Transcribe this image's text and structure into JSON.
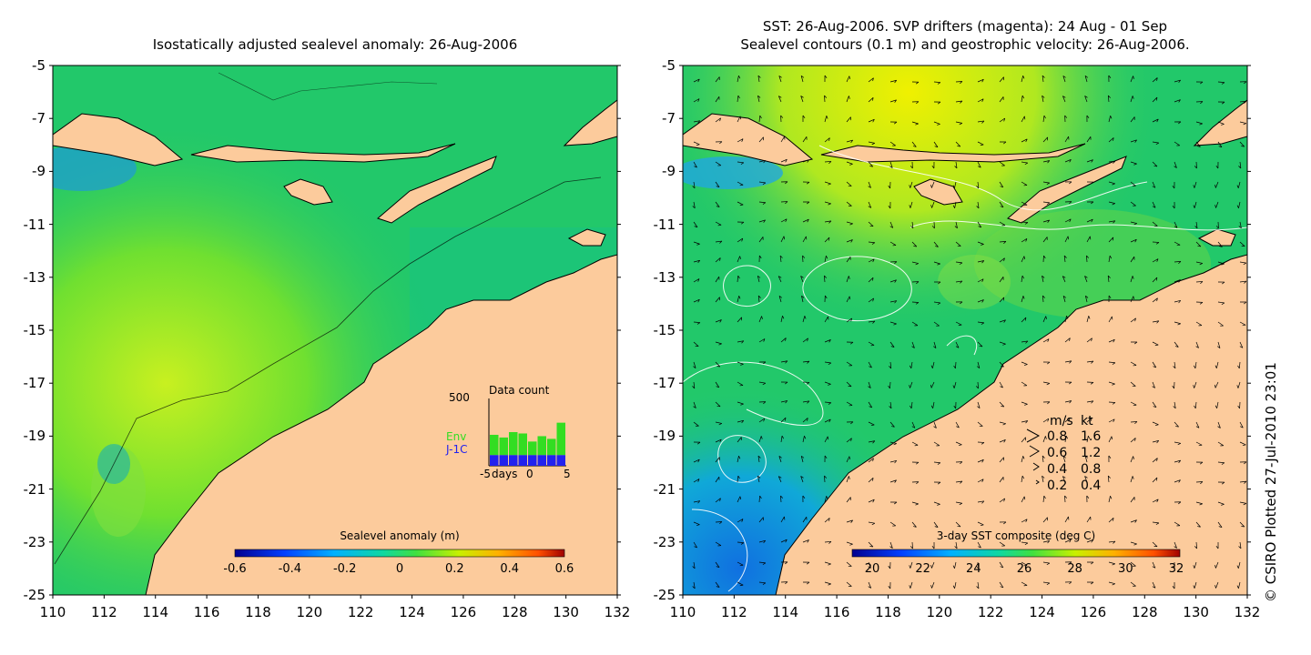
{
  "left_panel": {
    "title": "Isostatically adjusted sealevel anomaly: 26-Aug-2006",
    "lon_ticks": [
      "110",
      "112",
      "114",
      "116",
      "118",
      "120",
      "122",
      "124",
      "126",
      "128",
      "130",
      "132"
    ],
    "lat_ticks": [
      "-5",
      "-7",
      "-9",
      "-11",
      "-13",
      "-15",
      "-17",
      "-19",
      "-21",
      "-23",
      "-25"
    ],
    "colorbar": {
      "label": "Sealevel anomaly (m)",
      "ticks": [
        "-0.6",
        "-0.4",
        "-0.2",
        "0",
        "0.2",
        "0.4",
        "0.6"
      ]
    },
    "data_count": {
      "title": "Data count",
      "ymax_label": "500",
      "series": [
        {
          "name": "Env",
          "color": "#33dd22"
        },
        {
          "name": "J-1C",
          "color": "#2222ee"
        }
      ],
      "x_labels": [
        "-5",
        "days",
        "0",
        "5"
      ],
      "env_counts": [
        230,
        210,
        250,
        240,
        180,
        220,
        200,
        320
      ],
      "j1c_counts": [
        80,
        80,
        80,
        80,
        80,
        80,
        80,
        80
      ]
    }
  },
  "right_panel": {
    "title_line1": "SST: 26-Aug-2006. SVP drifters (magenta): 24 Aug - 01 Sep",
    "title_line2": "Sealevel contours (0.1 m) and geostrophic velocity: 26-Aug-2006.",
    "lon_ticks": [
      "110",
      "112",
      "114",
      "116",
      "118",
      "120",
      "122",
      "124",
      "126",
      "128",
      "130",
      "132"
    ],
    "lat_ticks": [
      "-5",
      "-7",
      "-9",
      "-11",
      "-13",
      "-15",
      "-17",
      "-19",
      "-21",
      "-23",
      "-25"
    ],
    "colorbar": {
      "label": "3-day SST composite (deg C)",
      "ticks": [
        "20",
        "22",
        "24",
        "26",
        "28",
        "30",
        "32"
      ]
    },
    "velocity_legend": {
      "headers": [
        "m/s",
        "kt"
      ],
      "rows": [
        [
          "0.8",
          "1.6"
        ],
        [
          "0.6",
          "1.2"
        ],
        [
          "0.4",
          "0.8"
        ],
        [
          "0.2",
          "0.4"
        ]
      ]
    }
  },
  "credit": "© CSIRO Plotted 27-Jul-2010 23:01",
  "colors": {
    "ocean": "#22c86a",
    "land": "#fccb9c",
    "coast": "#000000"
  }
}
